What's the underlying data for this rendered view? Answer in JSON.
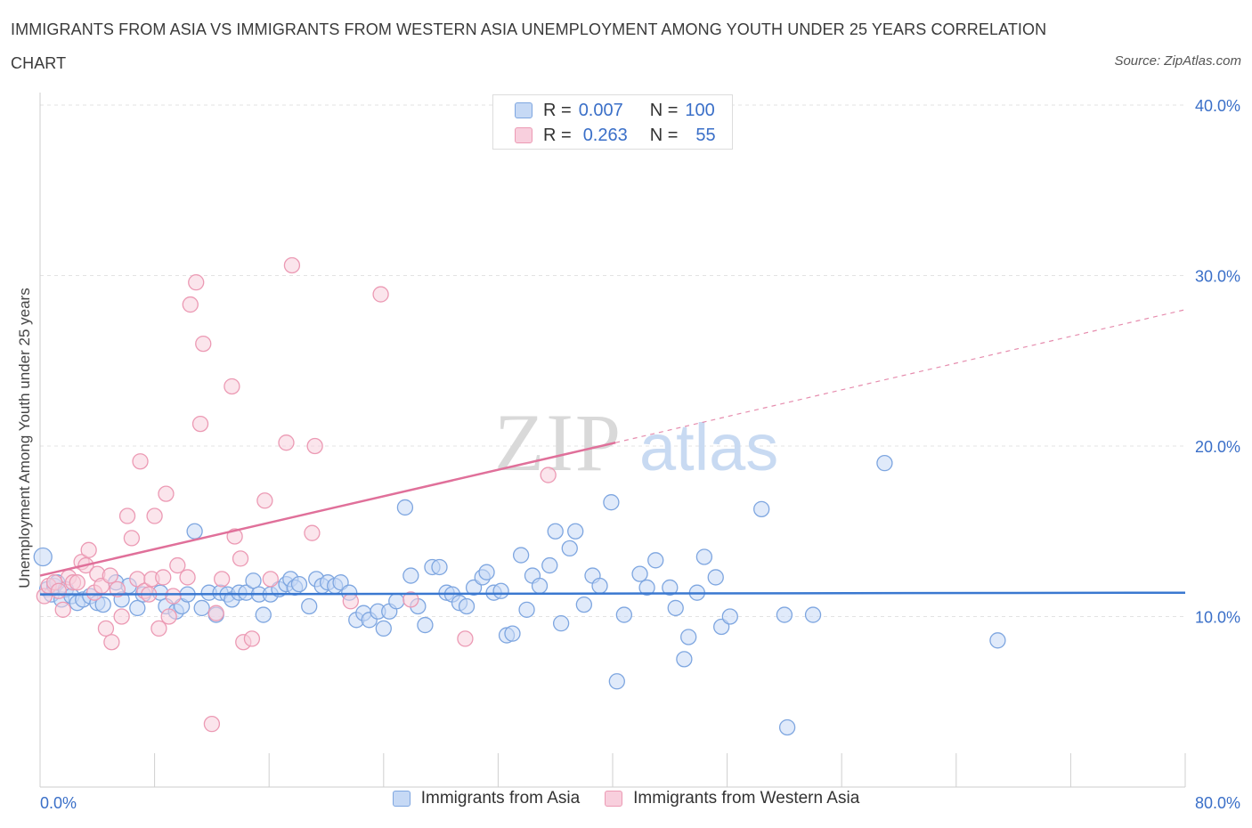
{
  "title": "IMMIGRANTS FROM ASIA VS IMMIGRANTS FROM WESTERN ASIA UNEMPLOYMENT AMONG YOUTH UNDER 25 YEARS CORRELATION CHART",
  "source": "Source: ZipAtlas.com",
  "watermark": {
    "zip": "ZIP",
    "atlas": "atlas"
  },
  "legend_top": {
    "rows": [
      {
        "r_label": "R =",
        "r_value": "0.007",
        "n_label": "N =",
        "n_value": "100",
        "color": "#7ea6e0"
      },
      {
        "r_label": "R =",
        "r_value": "0.263",
        "n_label": "N =",
        "n_value": "55",
        "color": "#ec9ab4"
      }
    ]
  },
  "legend_bottom": {
    "items": [
      {
        "label": "Immigrants from Asia",
        "color": "#7ea6e0"
      },
      {
        "label": "Immigrants from Western Asia",
        "color": "#ec9ab4"
      }
    ]
  },
  "chart_data": {
    "type": "scatter",
    "title": "IMMIGRANTS FROM ASIA VS IMMIGRANTS FROM WESTERN ASIA UNEMPLOYMENT AMONG YOUTH UNDER 25 YEARS CORRELATION CHART",
    "xlabel": "",
    "ylabel": "Unemployment Among Youth under 25 years",
    "xlim": [
      0,
      80
    ],
    "ylim": [
      0,
      40
    ],
    "x_tick_labels": [
      {
        "value": 0,
        "label": "0.0%"
      },
      {
        "value": 80,
        "label": "80.0%"
      }
    ],
    "y_tick_labels": [
      {
        "value": 10,
        "label": "10.0%"
      },
      {
        "value": 20,
        "label": "20.0%"
      },
      {
        "value": 30,
        "label": "30.0%"
      },
      {
        "value": 40,
        "label": "40.0%"
      }
    ],
    "x_minor_ticks": [
      0,
      8,
      16,
      24,
      32,
      40,
      48,
      56,
      64,
      72,
      80
    ],
    "series": [
      {
        "name": "Immigrants from Asia",
        "color": "#7ea6e0",
        "fill": "#c6d9f5",
        "line_color": "#3a78d0",
        "trend": {
          "x": [
            0,
            80
          ],
          "y": [
            11.3,
            11.4
          ]
        },
        "points": [
          [
            0.2,
            13.5
          ],
          [
            0.5,
            11.6
          ],
          [
            0.8,
            11.3
          ],
          [
            1.0,
            11.8
          ],
          [
            1.2,
            12.0
          ],
          [
            1.5,
            11.0
          ],
          [
            1.8,
            11.6
          ],
          [
            2.2,
            11.2
          ],
          [
            2.6,
            10.8
          ],
          [
            3.0,
            11.0
          ],
          [
            3.5,
            11.2
          ],
          [
            4.0,
            10.8
          ],
          [
            4.4,
            10.7
          ],
          [
            5.3,
            12.0
          ],
          [
            5.7,
            11.0
          ],
          [
            6.2,
            11.8
          ],
          [
            6.8,
            10.5
          ],
          [
            7.2,
            11.3
          ],
          [
            8.4,
            11.4
          ],
          [
            8.8,
            10.6
          ],
          [
            9.5,
            10.3
          ],
          [
            9.9,
            10.6
          ],
          [
            10.3,
            11.3
          ],
          [
            10.8,
            15.0
          ],
          [
            11.3,
            10.5
          ],
          [
            11.8,
            11.4
          ],
          [
            12.3,
            10.1
          ],
          [
            12.6,
            11.4
          ],
          [
            13.1,
            11.3
          ],
          [
            13.4,
            11.0
          ],
          [
            13.9,
            11.4
          ],
          [
            14.4,
            11.4
          ],
          [
            14.9,
            12.1
          ],
          [
            15.3,
            11.3
          ],
          [
            15.6,
            10.1
          ],
          [
            16.1,
            11.3
          ],
          [
            16.7,
            11.6
          ],
          [
            17.2,
            11.9
          ],
          [
            17.5,
            12.2
          ],
          [
            17.8,
            11.7
          ],
          [
            18.1,
            11.9
          ],
          [
            18.8,
            10.6
          ],
          [
            19.3,
            12.2
          ],
          [
            19.7,
            11.8
          ],
          [
            20.1,
            12.0
          ],
          [
            20.6,
            11.8
          ],
          [
            21.0,
            12.0
          ],
          [
            21.6,
            11.4
          ],
          [
            22.1,
            9.8
          ],
          [
            22.6,
            10.2
          ],
          [
            23.0,
            9.8
          ],
          [
            23.6,
            10.3
          ],
          [
            24.0,
            9.3
          ],
          [
            24.4,
            10.3
          ],
          [
            24.9,
            10.9
          ],
          [
            25.5,
            16.4
          ],
          [
            25.9,
            12.4
          ],
          [
            26.4,
            10.6
          ],
          [
            26.9,
            9.5
          ],
          [
            27.4,
            12.9
          ],
          [
            27.9,
            12.9
          ],
          [
            28.4,
            11.4
          ],
          [
            28.8,
            11.3
          ],
          [
            29.3,
            10.8
          ],
          [
            29.8,
            10.6
          ],
          [
            30.3,
            11.7
          ],
          [
            30.9,
            12.3
          ],
          [
            31.2,
            12.6
          ],
          [
            31.7,
            11.4
          ],
          [
            32.2,
            11.5
          ],
          [
            32.6,
            8.9
          ],
          [
            33.0,
            9.0
          ],
          [
            33.6,
            13.6
          ],
          [
            34.0,
            10.4
          ],
          [
            34.4,
            12.4
          ],
          [
            34.9,
            11.8
          ],
          [
            35.6,
            13.0
          ],
          [
            36.0,
            15.0
          ],
          [
            36.4,
            9.6
          ],
          [
            37.0,
            14.0
          ],
          [
            37.4,
            15.0
          ],
          [
            38.0,
            10.7
          ],
          [
            38.6,
            12.4
          ],
          [
            39.1,
            11.8
          ],
          [
            39.9,
            16.7
          ],
          [
            40.3,
            6.2
          ],
          [
            40.8,
            10.1
          ],
          [
            41.9,
            12.5
          ],
          [
            42.4,
            11.7
          ],
          [
            43.0,
            13.3
          ],
          [
            44.0,
            11.7
          ],
          [
            44.4,
            10.5
          ],
          [
            45.0,
            7.5
          ],
          [
            45.3,
            8.8
          ],
          [
            45.9,
            11.4
          ],
          [
            46.4,
            13.5
          ],
          [
            47.2,
            12.3
          ],
          [
            47.6,
            9.4
          ],
          [
            48.2,
            10.0
          ],
          [
            50.4,
            16.3
          ],
          [
            52.0,
            10.1
          ],
          [
            52.2,
            3.5
          ],
          [
            54.0,
            10.1
          ],
          [
            59.0,
            19.0
          ],
          [
            66.9,
            8.6
          ]
        ]
      },
      {
        "name": "Immigrants from Western Asia",
        "color": "#ec9ab4",
        "fill": "#f8cfdd",
        "line_color": "#e0709a",
        "trend": {
          "x": [
            0,
            40.2
          ],
          "y": [
            12.4,
            20.2
          ]
        },
        "trend_dashed": {
          "x": [
            40.2,
            80
          ],
          "y": [
            20.2,
            28.0
          ]
        },
        "points": [
          [
            0.3,
            11.2
          ],
          [
            0.6,
            11.8
          ],
          [
            1.0,
            12.0
          ],
          [
            1.3,
            11.5
          ],
          [
            1.6,
            10.4
          ],
          [
            2.0,
            12.3
          ],
          [
            2.3,
            12.0
          ],
          [
            2.6,
            12.0
          ],
          [
            2.9,
            13.2
          ],
          [
            3.2,
            13.0
          ],
          [
            3.4,
            13.9
          ],
          [
            3.8,
            11.4
          ],
          [
            4.0,
            12.5
          ],
          [
            4.3,
            11.8
          ],
          [
            4.6,
            9.3
          ],
          [
            4.9,
            12.4
          ],
          [
            5.0,
            8.5
          ],
          [
            5.4,
            11.6
          ],
          [
            5.7,
            10.0
          ],
          [
            6.1,
            15.9
          ],
          [
            6.4,
            14.6
          ],
          [
            6.8,
            12.2
          ],
          [
            7.0,
            19.1
          ],
          [
            7.3,
            11.5
          ],
          [
            7.6,
            11.3
          ],
          [
            7.8,
            12.2
          ],
          [
            8.0,
            15.9
          ],
          [
            8.3,
            9.3
          ],
          [
            8.6,
            12.3
          ],
          [
            8.8,
            17.2
          ],
          [
            9.0,
            10.0
          ],
          [
            9.3,
            11.2
          ],
          [
            9.6,
            13.0
          ],
          [
            10.3,
            12.3
          ],
          [
            10.5,
            28.3
          ],
          [
            10.9,
            29.6
          ],
          [
            11.2,
            21.3
          ],
          [
            11.4,
            26.0
          ],
          [
            12.0,
            3.7
          ],
          [
            12.3,
            10.2
          ],
          [
            12.7,
            12.2
          ],
          [
            13.4,
            23.5
          ],
          [
            13.6,
            14.7
          ],
          [
            14.0,
            13.4
          ],
          [
            14.2,
            8.5
          ],
          [
            14.8,
            8.7
          ],
          [
            15.7,
            16.8
          ],
          [
            16.1,
            12.2
          ],
          [
            17.2,
            20.2
          ],
          [
            17.6,
            30.6
          ],
          [
            19.0,
            14.9
          ],
          [
            19.2,
            20.0
          ],
          [
            21.7,
            10.9
          ],
          [
            23.8,
            28.9
          ],
          [
            25.9,
            11.0
          ],
          [
            29.7,
            8.7
          ],
          [
            35.5,
            18.3
          ]
        ]
      }
    ]
  }
}
